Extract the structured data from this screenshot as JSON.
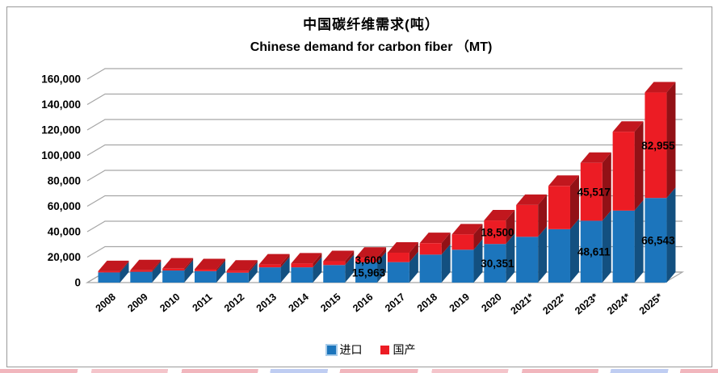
{
  "titles": {
    "zh": "中国碳纤维需求(吨）",
    "en": "Chinese demand for carbon fiber （MT)"
  },
  "legend": [
    {
      "label": "进口",
      "color": "#1c75bc"
    },
    {
      "label": "国产",
      "color": "#ec1c24"
    }
  ],
  "chart_data": {
    "type": "bar",
    "stacked": true,
    "3d": true,
    "title": "中国碳纤维需求(吨） / Chinese demand for carbon fiber （MT)",
    "xlabel": "",
    "ylabel": "",
    "ylim": [
      0,
      160000
    ],
    "ytick_step": 20000,
    "ytick_labels": [
      "0",
      "20,000",
      "40,000",
      "60,000",
      "80,000",
      "100,000",
      "120,000",
      "140,000",
      "160,000"
    ],
    "grid": true,
    "legend_position": "bottom",
    "categories": [
      "2008",
      "2009",
      "2010",
      "2011",
      "2012",
      "2013",
      "2014",
      "2015",
      "2016",
      "2017",
      "2018",
      "2019",
      "2020",
      "2021*",
      "2022*",
      "2023*",
      "2024*",
      "2025*"
    ],
    "series": [
      {
        "name": "进口",
        "color": "#1c75bc",
        "values": [
          8000,
          8500,
          9500,
          9000,
          7800,
          12000,
          12000,
          13800,
          15963,
          16087,
          22000,
          25840,
          30351,
          36000,
          42000,
          48611,
          56600,
          66543
        ]
      },
      {
        "name": "国产",
        "color": "#ec1c24",
        "values": [
          1000,
          1200,
          1500,
          1500,
          1600,
          2200,
          3000,
          3000,
          3600,
          7400,
          9000,
          12000,
          18500,
          25000,
          34000,
          45517,
          62000,
          82955
        ]
      }
    ],
    "labeled_points": [
      {
        "category": "2016",
        "series": "国产",
        "text": "3,600"
      },
      {
        "category": "2016",
        "series": "进口",
        "text": "15,963"
      },
      {
        "category": "2020",
        "series": "国产",
        "text": "18,500"
      },
      {
        "category": "2020",
        "series": "进口",
        "text": "30,351"
      },
      {
        "category": "2023*",
        "series": "国产",
        "text": "45,517"
      },
      {
        "category": "2023*",
        "series": "进口",
        "text": "48,611"
      },
      {
        "category": "2025*",
        "series": "国产",
        "text": "82,955"
      },
      {
        "category": "2025*",
        "series": "进口",
        "text": "66,543"
      }
    ]
  }
}
